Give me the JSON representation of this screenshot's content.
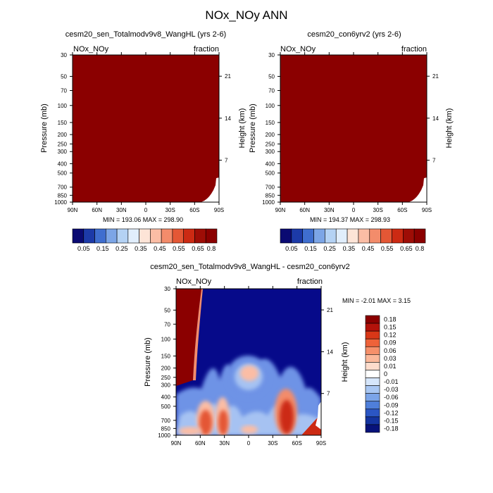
{
  "figure_title": "NOx_NOy ANN",
  "chart_data": [
    {
      "type": "heatmap",
      "title": "cesm20_sen_Totalmodv9v8_WangHL (yrs 2-6)",
      "left_label": "NOx_NOy",
      "right_label": "fraction",
      "xlabel": "",
      "ylabel": "Pressure (mb)",
      "y2label": "Height (km)",
      "x_ticks": [
        "90N",
        "60N",
        "30N",
        "0",
        "30S",
        "60S",
        "90S"
      ],
      "y_ticks": [
        30,
        50,
        70,
        100,
        150,
        200,
        250,
        300,
        400,
        500,
        700,
        850,
        1000
      ],
      "y2_ticks": [
        21,
        14,
        7
      ],
      "ylim": [
        30,
        1000
      ],
      "stats_text": "MIN = 193.06  MAX = 298.90",
      "field": "all values above 0.8 (saturated) except surface notch near 90S",
      "colorbar": {
        "orientation": "horizontal",
        "labels": [
          "0.05",
          "0.15",
          "0.25",
          "0.35",
          "0.45",
          "0.55",
          "0.65",
          "0.8"
        ]
      }
    },
    {
      "type": "heatmap",
      "title": "cesm20_con6yrv2 (yrs 2-6)",
      "left_label": "NOx_NOy",
      "right_label": "fraction",
      "xlabel": "",
      "ylabel": "Pressure (mb)",
      "y2label": "Height (km)",
      "x_ticks": [
        "90N",
        "60N",
        "30N",
        "0",
        "30S",
        "60S",
        "90S"
      ],
      "y_ticks": [
        30,
        50,
        70,
        100,
        150,
        200,
        250,
        300,
        400,
        500,
        700,
        850,
        1000
      ],
      "y2_ticks": [
        21,
        14,
        7
      ],
      "ylim": [
        30,
        1000
      ],
      "stats_text": "MIN = 194.37  MAX = 298.93",
      "field": "all values above 0.8 (saturated) except surface notch near 90S",
      "colorbar": {
        "orientation": "horizontal",
        "labels": [
          "0.05",
          "0.15",
          "0.25",
          "0.35",
          "0.45",
          "0.55",
          "0.65",
          "0.8"
        ]
      }
    },
    {
      "type": "heatmap",
      "title": "cesm20_sen_Totalmodv9v8_WangHL - cesm20_con6yrv2",
      "left_label": "NOx_NOy",
      "right_label": "fraction",
      "xlabel": "",
      "ylabel": "Pressure (mb)",
      "y2label": "Height (km)",
      "x_ticks": [
        "90N",
        "60N",
        "30N",
        "0",
        "30S",
        "60S",
        "90S"
      ],
      "y_ticks": [
        30,
        50,
        70,
        100,
        150,
        200,
        250,
        300,
        400,
        500,
        700,
        850,
        1000
      ],
      "y2_ticks": [
        21,
        14,
        7
      ],
      "ylim": [
        30,
        1000
      ],
      "stats_text": "MIN =  -2.01  MAX =   3.15",
      "field": "difference field: strongly positive north of ~60N in stratosphere, positive blobs near 30N and 45S lower troposphere, near-zero/negative elsewhere",
      "colorbar": {
        "orientation": "vertical",
        "labels": [
          "0.18",
          "0.15",
          "0.12",
          "0.09",
          "0.06",
          "0.03",
          "0.01",
          "0",
          "-0.01",
          "-0.03",
          "-0.06",
          "-0.09",
          "-0.12",
          "-0.15",
          "-0.18"
        ]
      }
    }
  ],
  "colors": {
    "sequential": [
      "#0a0a72",
      "#1c3aa8",
      "#3f6ecf",
      "#7ca5e6",
      "#b4d2f4",
      "#e1eefc",
      "#fde4d7",
      "#fbbda5",
      "#f38c6b",
      "#e45735",
      "#cc2a13",
      "#9e0d06",
      "#8b0000"
    ],
    "diverging_top_to_bottom": [
      "#8b0000",
      "#b3120a",
      "#d83717",
      "#ee6239",
      "#f6906a",
      "#fbb89a",
      "#fddccc",
      "#ffffff",
      "#d6e6fb",
      "#a9c7f3",
      "#7ba4e8",
      "#4f7fda",
      "#2b56c4",
      "#1434a0",
      "#07127a"
    ],
    "saturated_high": "#8b0000",
    "difference_background": "#060a8a",
    "difference_light": "#6e93e6",
    "difference_lighter": "#a6c2f2"
  }
}
